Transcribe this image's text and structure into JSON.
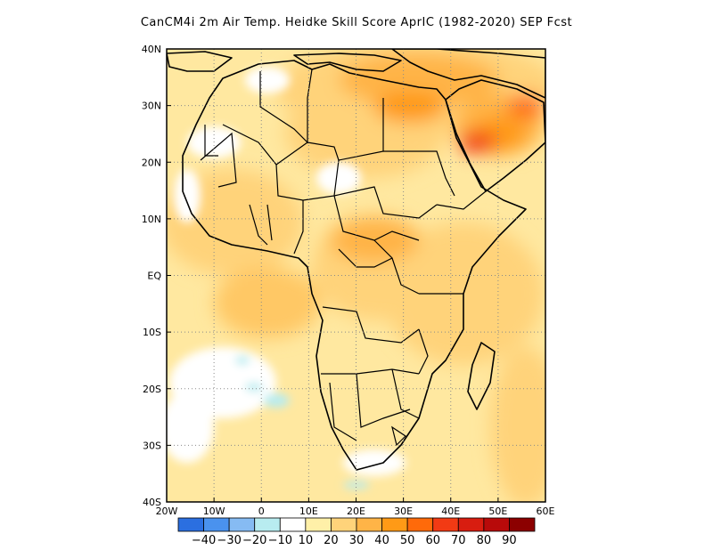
{
  "title": "CanCM4i  2m Air Temp. Heidke Skill Score AprIC (1982-2020) SEP Fcst",
  "map": {
    "lon_range": [
      -20,
      60
    ],
    "lat_range": [
      -40,
      40
    ],
    "lon_ticks": [
      {
        "value": -20,
        "label": "20W"
      },
      {
        "value": -10,
        "label": "10W"
      },
      {
        "value": 0,
        "label": "0"
      },
      {
        "value": 10,
        "label": "10E"
      },
      {
        "value": 20,
        "label": "20E"
      },
      {
        "value": 30,
        "label": "30E"
      },
      {
        "value": 40,
        "label": "40E"
      },
      {
        "value": 50,
        "label": "50E"
      },
      {
        "value": 60,
        "label": "60E"
      }
    ],
    "lat_ticks": [
      {
        "value": 40,
        "label": "40N"
      },
      {
        "value": 30,
        "label": "30N"
      },
      {
        "value": 20,
        "label": "20N"
      },
      {
        "value": 10,
        "label": "10N"
      },
      {
        "value": 0,
        "label": "EQ"
      },
      {
        "value": -10,
        "label": "10S"
      },
      {
        "value": -20,
        "label": "20S"
      },
      {
        "value": -30,
        "label": "30S"
      },
      {
        "value": -40,
        "label": "40S"
      }
    ],
    "grid": true
  },
  "colorbar": {
    "colors": [
      "#2b6fe0",
      "#4a92ee",
      "#86bbf3",
      "#b8ecf0",
      "#ffffff",
      "#fff0a8",
      "#ffd37a",
      "#ffb447",
      "#ff9a16",
      "#ff6a0a",
      "#f23a14",
      "#d81d10",
      "#b80a0a",
      "#8c0000"
    ],
    "labels": [
      "-40",
      "-30",
      "-20",
      "-10",
      "10",
      "20",
      "30",
      "40",
      "50",
      "60",
      "70",
      "80",
      "90"
    ]
  }
}
